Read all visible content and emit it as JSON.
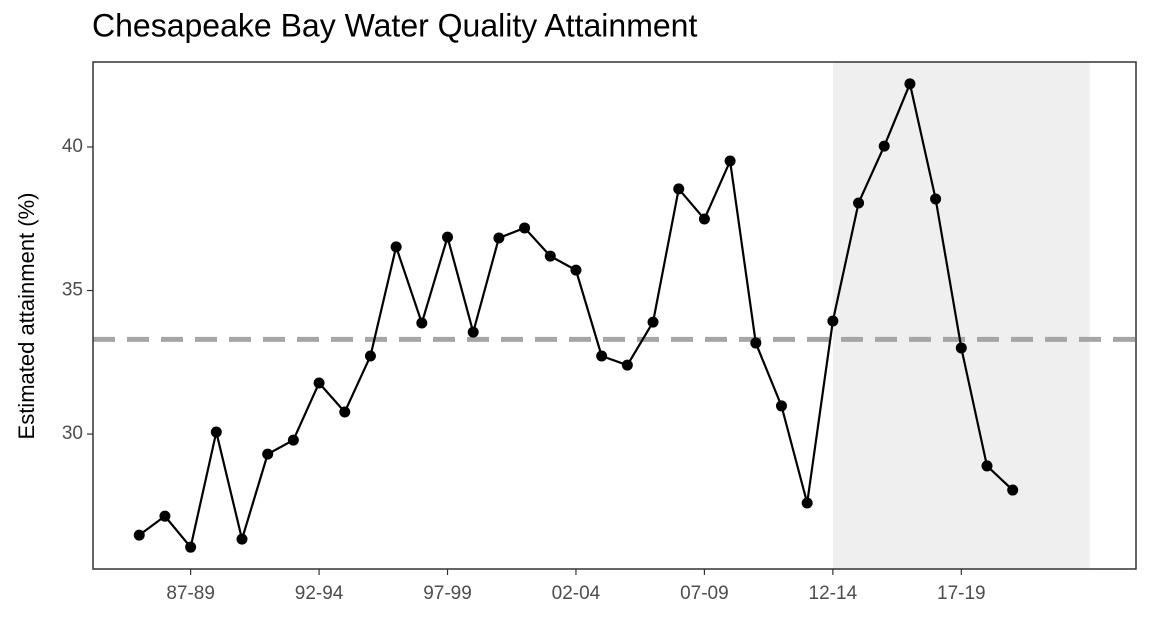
{
  "chart_data": {
    "type": "line",
    "title": "Chesapeake Bay Water Quality Attainment",
    "ylabel": "Estimated attainment (%)",
    "categories": [
      null,
      null,
      "87-89",
      null,
      null,
      null,
      null,
      "92-94",
      null,
      null,
      null,
      null,
      "97-99",
      null,
      null,
      null,
      null,
      "02-04",
      null,
      null,
      null,
      null,
      "07-09",
      null,
      null,
      null,
      null,
      "12-14",
      null,
      null,
      null,
      null,
      "17-19",
      null,
      null
    ],
    "series": [
      {
        "color": "#000000",
        "values": [
          26.48,
          27.14,
          26.06,
          30.07,
          26.34,
          29.3,
          29.79,
          31.78,
          30.77,
          32.72,
          36.52,
          33.87,
          36.86,
          33.55,
          36.83,
          37.18,
          36.2,
          35.71,
          32.72,
          32.4,
          33.9,
          38.54,
          37.49,
          39.51,
          33.17,
          30.98,
          27.6,
          33.94,
          38.05,
          40.03,
          42.2,
          38.19,
          33.0,
          28.89,
          28.05
        ]
      }
    ],
    "xlim": [
      -1.8,
      38.8
    ],
    "ylim": [
      25.3,
      42.96
    ],
    "yticks": [
      30,
      35,
      40
    ],
    "hline": {
      "value": 33.3,
      "color": "#a6a6a6",
      "dashed": true
    },
    "shade_xlim": [
      27,
      37
    ],
    "shade_color": "#efefef",
    "grid": false
  }
}
